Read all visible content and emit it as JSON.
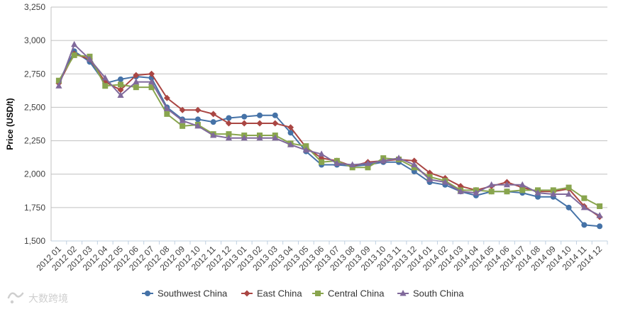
{
  "chart_data": {
    "type": "line",
    "title": "",
    "xlabel": "",
    "ylabel": "Price (USD/t)",
    "ylim": [
      1500,
      3250
    ],
    "yticks": [
      1500,
      1750,
      2000,
      2250,
      2500,
      2750,
      3000,
      3250
    ],
    "ytick_labels": [
      "1,500",
      "1,750",
      "2,000",
      "2,250",
      "2,500",
      "2,750",
      "3,000",
      "3,250"
    ],
    "grid": "horizontal",
    "legend_position": "bottom-center",
    "categories": [
      "2012 01",
      "2012 02",
      "2012 03",
      "2012 04",
      "2012 05",
      "2012 06",
      "2012 07",
      "2012 08",
      "2012 09",
      "2012 10",
      "2012 11",
      "2012 12",
      "2013 01",
      "2013 02",
      "2013 03",
      "2013 04",
      "2013 05",
      "2013 06",
      "2013 07",
      "2013 08",
      "2013 09",
      "2013 10",
      "2013 11",
      "2013 12",
      "2014 01",
      "2014 02",
      "2014 03",
      "2014 04",
      "2014 05",
      "2014 06",
      "2014 07",
      "2014 08",
      "2014 09",
      "2014 10",
      "2014 11",
      "2014 12"
    ],
    "series": [
      {
        "name": "Southwest China",
        "color": "#4572A7",
        "marker": "circle",
        "values": [
          2690,
          2920,
          2840,
          2680,
          2710,
          2730,
          2720,
          2500,
          2410,
          2410,
          2390,
          2420,
          2430,
          2440,
          2440,
          2310,
          2170,
          2070,
          2070,
          2060,
          2070,
          2090,
          2090,
          2020,
          1940,
          1920,
          1870,
          1840,
          1870,
          1870,
          1860,
          1830,
          1830,
          1750,
          1620,
          1610
        ]
      },
      {
        "name": "East China",
        "color": "#AA4643",
        "marker": "diamond",
        "values": [
          2680,
          2900,
          2860,
          2690,
          2630,
          2740,
          2750,
          2570,
          2480,
          2480,
          2450,
          2380,
          2380,
          2380,
          2380,
          2350,
          2200,
          2120,
          2100,
          2060,
          2090,
          2100,
          2110,
          2100,
          2010,
          1970,
          1910,
          1880,
          1910,
          1940,
          1900,
          1870,
          1870,
          1890,
          1760,
          1680
        ]
      },
      {
        "name": "Central China",
        "color": "#89A54E",
        "marker": "square",
        "values": [
          2700,
          2890,
          2880,
          2660,
          2670,
          2650,
          2650,
          2450,
          2360,
          2370,
          2300,
          2300,
          2290,
          2290,
          2290,
          2230,
          2210,
          2090,
          2100,
          2050,
          2050,
          2120,
          2110,
          2050,
          1980,
          1950,
          1880,
          1880,
          1870,
          1870,
          1880,
          1880,
          1880,
          1900,
          1820,
          1760
        ]
      },
      {
        "name": "South China",
        "color": "#80699B",
        "marker": "triangle",
        "values": [
          2660,
          2970,
          2860,
          2720,
          2590,
          2690,
          2690,
          2490,
          2400,
          2360,
          2290,
          2270,
          2270,
          2270,
          2270,
          2220,
          2180,
          2150,
          2080,
          2070,
          2080,
          2100,
          2120,
          2070,
          1960,
          1940,
          1870,
          1860,
          1920,
          1920,
          1920,
          1860,
          1850,
          1850,
          1750,
          1690
        ]
      }
    ]
  },
  "watermark": {
    "text": "大数跨境"
  }
}
